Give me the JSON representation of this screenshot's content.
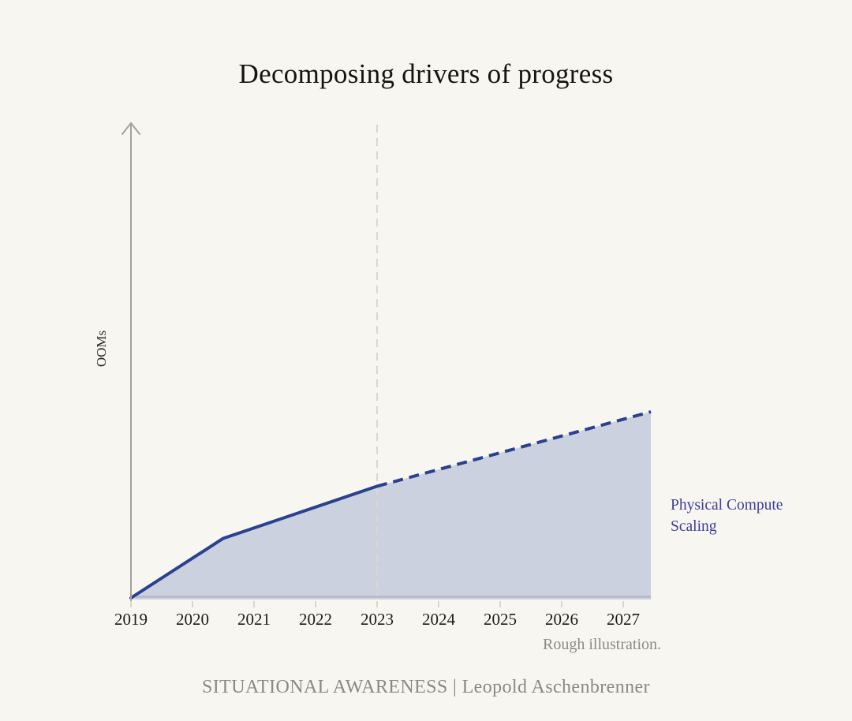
{
  "page": {
    "title": "Decomposing drivers of progress",
    "footer": "SITUATIONAL AWARENESS | Leopold Aschenbrenner",
    "note": "Rough illustration.",
    "background_color": "#f7f6f0"
  },
  "chart_data": {
    "type": "area",
    "title": "Decomposing drivers of progress",
    "xlabel": "",
    "ylabel": "OOMs",
    "x_ticks": [
      "2019",
      "2020",
      "2021",
      "2022",
      "2023",
      "2024",
      "2025",
      "2026",
      "2027"
    ],
    "x_range": [
      2019,
      2027.45
    ],
    "y_units": "relative OOMs (axis unlabeled)",
    "ylim": [
      0,
      2.5
    ],
    "grid": false,
    "legend_position": "right-annotation",
    "annotation": "Physical Compute Scaling",
    "vline": {
      "x": 2023,
      "style": "dashed",
      "color": "#d8d7d1",
      "meaning": "boundary between historical and projected"
    },
    "series": [
      {
        "name": "Physical Compute Scaling (historical)",
        "style": "solid",
        "x": [
          2019,
          2020.5,
          2023
        ],
        "y": [
          0,
          0.32,
          0.6
        ]
      },
      {
        "name": "Physical Compute Scaling (projected)",
        "style": "dashed",
        "x": [
          2023,
          2027.45
        ],
        "y": [
          0.6,
          1.0
        ]
      }
    ],
    "area_fill": true,
    "colors": {
      "line": "#2a4190",
      "fill": "#ccd1e0",
      "fill_edge": "#b9bcca",
      "annotation_label": "#3d3d9b",
      "axis": "#a3a29c",
      "tick": "#ccccc5",
      "tick_label": "#1c1c1c"
    }
  }
}
